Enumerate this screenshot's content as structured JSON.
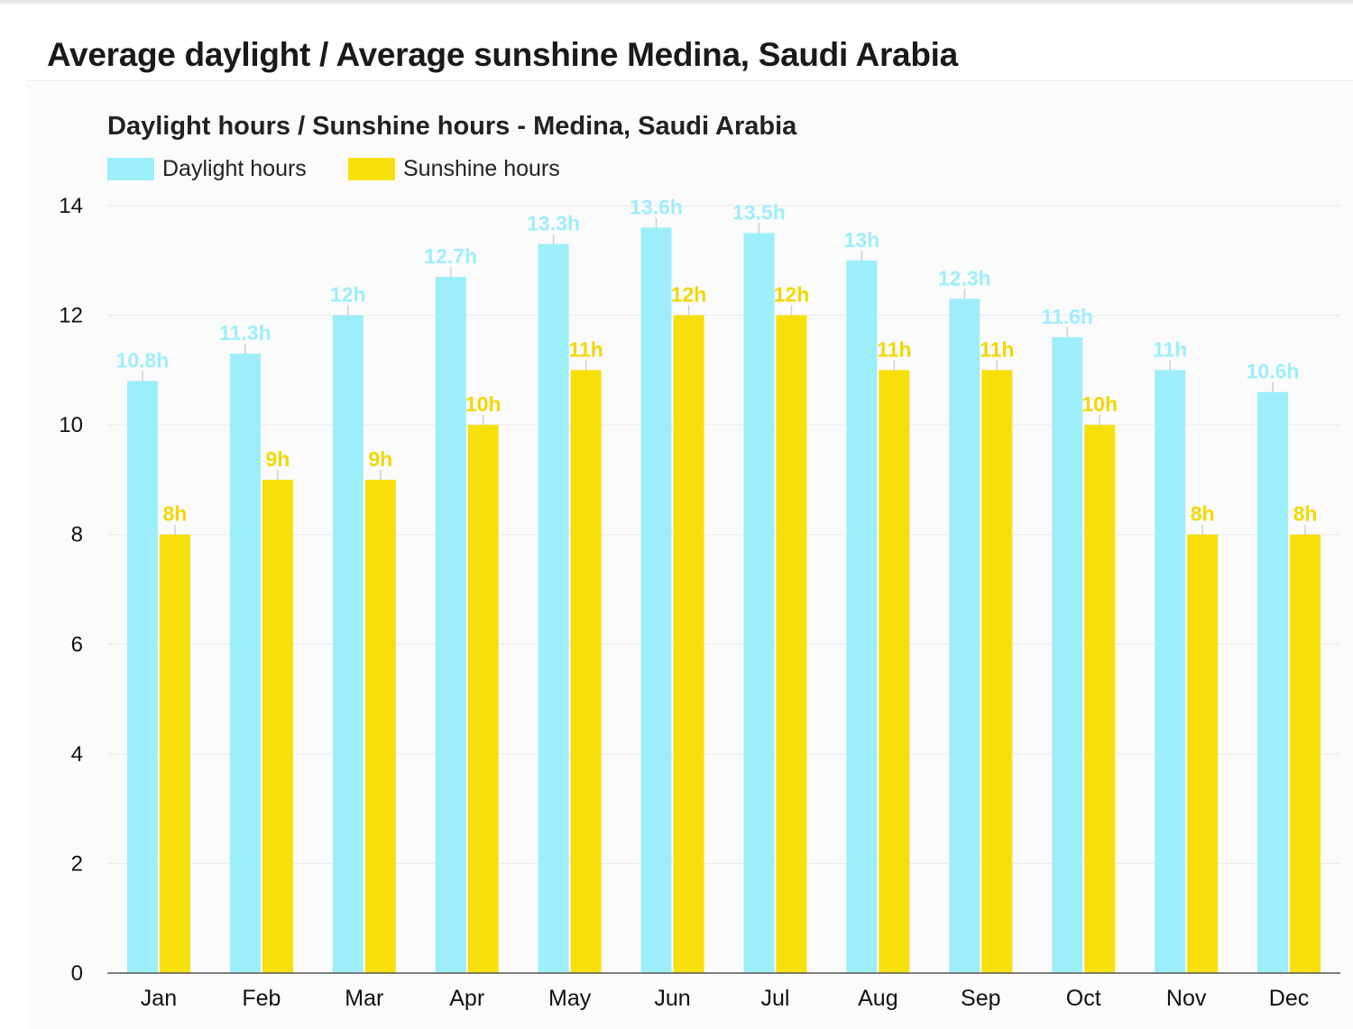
{
  "page": {
    "title": "Average daylight / Average sunshine Medina, Saudi Arabia"
  },
  "chart_data": {
    "type": "bar",
    "title": "Daylight hours / Sunshine hours - Medina, Saudi Arabia",
    "xlabel": "",
    "ylabel": "",
    "categories": [
      "Jan",
      "Feb",
      "Mar",
      "Apr",
      "May",
      "Jun",
      "Jul",
      "Aug",
      "Sep",
      "Oct",
      "Nov",
      "Dec"
    ],
    "series": [
      {
        "name": "Daylight hours",
        "color": "#9deefb",
        "label_color": "#9deefb",
        "values": [
          10.8,
          11.3,
          12,
          12.7,
          13.3,
          13.6,
          13.5,
          13,
          12.3,
          11.6,
          11,
          10.6
        ],
        "labels": [
          "10.8h",
          "11.3h",
          "12h",
          "12.7h",
          "13.3h",
          "13.6h",
          "13.5h",
          "13h",
          "12.3h",
          "11.6h",
          "11h",
          "10.6h"
        ]
      },
      {
        "name": "Sunshine hours",
        "color": "#f7df0b",
        "label_color": "#f3d600",
        "values": [
          8,
          9,
          9,
          10,
          11,
          12,
          12,
          11,
          11,
          10,
          8,
          8
        ],
        "labels": [
          "8h",
          "9h",
          "9h",
          "10h",
          "11h",
          "12h",
          "12h",
          "11h",
          "11h",
          "10h",
          "8h",
          "8h"
        ]
      }
    ],
    "ylim": [
      0,
      14
    ],
    "yticks": [
      "0",
      "2",
      "4",
      "6",
      "8",
      "10",
      "12",
      "14"
    ],
    "grid": true,
    "legend": "top-left"
  }
}
